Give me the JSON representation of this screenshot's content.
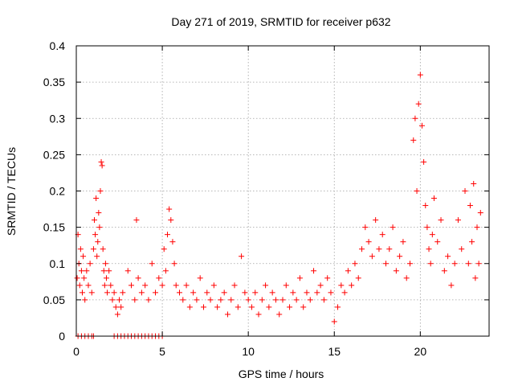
{
  "chart_data": {
    "type": "scatter",
    "title": "Day 271 of 2019, SRMTID for receiver p632",
    "xlabel": "GPS time / hours",
    "ylabel": "SRMTID / TECUs",
    "xlim": [
      0,
      24
    ],
    "ylim": [
      0,
      0.4
    ],
    "xticks": [
      0,
      5,
      10,
      15,
      20
    ],
    "xtick_labels": [
      "0",
      "5",
      "10",
      "15",
      "20"
    ],
    "yticks": [
      0,
      0.05,
      0.1,
      0.15,
      0.2,
      0.25,
      0.3,
      0.35,
      0.4
    ],
    "ytick_labels": [
      "0",
      "0.05",
      "0.1",
      "0.15",
      "0.2",
      "0.25",
      "0.3",
      "0.35",
      "0.4"
    ],
    "grid": true,
    "marker": "+",
    "series": [
      {
        "name": "SRMTID",
        "color": "#ff0000",
        "points": [
          [
            0.05,
            0.08
          ],
          [
            0.1,
            0.14
          ],
          [
            0.15,
            0.1
          ],
          [
            0.2,
            0.07
          ],
          [
            0.25,
            0.12
          ],
          [
            0.3,
            0.09
          ],
          [
            0.35,
            0.06
          ],
          [
            0.4,
            0.11
          ],
          [
            0.45,
            0.08
          ],
          [
            0.5,
            0.05
          ],
          [
            0.6,
            0.09
          ],
          [
            0.7,
            0.07
          ],
          [
            0.8,
            0.1
          ],
          [
            0.9,
            0.06
          ],
          [
            1.0,
            0.12
          ],
          [
            1.05,
            0.16
          ],
          [
            1.1,
            0.14
          ],
          [
            1.15,
            0.19
          ],
          [
            1.2,
            0.11
          ],
          [
            1.25,
            0.13
          ],
          [
            1.3,
            0.17
          ],
          [
            1.35,
            0.15
          ],
          [
            1.4,
            0.2
          ],
          [
            1.45,
            0.24
          ],
          [
            1.5,
            0.235
          ],
          [
            1.55,
            0.12
          ],
          [
            1.6,
            0.09
          ],
          [
            1.65,
            0.07
          ],
          [
            1.7,
            0.1
          ],
          [
            1.75,
            0.08
          ],
          [
            1.8,
            0.06
          ],
          [
            1.9,
            0.09
          ],
          [
            2.0,
            0.07
          ],
          [
            2.1,
            0.05
          ],
          [
            2.2,
            0.06
          ],
          [
            2.3,
            0.04
          ],
          [
            2.4,
            0.03
          ],
          [
            2.5,
            0.05
          ],
          [
            2.6,
            0.04
          ],
          [
            2.7,
            0.06
          ],
          [
            3.0,
            0.09
          ],
          [
            3.2,
            0.07
          ],
          [
            3.4,
            0.05
          ],
          [
            3.5,
            0.16
          ],
          [
            3.6,
            0.08
          ],
          [
            3.8,
            0.06
          ],
          [
            4.0,
            0.07
          ],
          [
            4.2,
            0.05
          ],
          [
            4.4,
            0.1
          ],
          [
            4.6,
            0.06
          ],
          [
            4.8,
            0.08
          ],
          [
            5.0,
            0.07
          ],
          [
            5.1,
            0.12
          ],
          [
            5.2,
            0.09
          ],
          [
            5.3,
            0.14
          ],
          [
            5.4,
            0.175
          ],
          [
            5.5,
            0.16
          ],
          [
            5.6,
            0.13
          ],
          [
            5.7,
            0.1
          ],
          [
            5.8,
            0.07
          ],
          [
            6.0,
            0.06
          ],
          [
            6.2,
            0.05
          ],
          [
            6.4,
            0.07
          ],
          [
            6.6,
            0.04
          ],
          [
            6.8,
            0.06
          ],
          [
            7.0,
            0.05
          ],
          [
            7.2,
            0.08
          ],
          [
            7.4,
            0.04
          ],
          [
            7.6,
            0.06
          ],
          [
            7.8,
            0.05
          ],
          [
            8.0,
            0.07
          ],
          [
            8.2,
            0.04
          ],
          [
            8.4,
            0.05
          ],
          [
            8.6,
            0.06
          ],
          [
            8.8,
            0.03
          ],
          [
            9.0,
            0.05
          ],
          [
            9.2,
            0.07
          ],
          [
            9.4,
            0.04
          ],
          [
            9.6,
            0.11
          ],
          [
            9.8,
            0.06
          ],
          [
            10.0,
            0.05
          ],
          [
            10.2,
            0.04
          ],
          [
            10.4,
            0.06
          ],
          [
            10.6,
            0.03
          ],
          [
            10.8,
            0.05
          ],
          [
            11.0,
            0.07
          ],
          [
            11.2,
            0.04
          ],
          [
            11.4,
            0.06
          ],
          [
            11.6,
            0.05
          ],
          [
            11.8,
            0.03
          ],
          [
            12.0,
            0.05
          ],
          [
            12.2,
            0.07
          ],
          [
            12.4,
            0.04
          ],
          [
            12.6,
            0.06
          ],
          [
            12.8,
            0.05
          ],
          [
            13.0,
            0.08
          ],
          [
            13.2,
            0.04
          ],
          [
            13.4,
            0.06
          ],
          [
            13.6,
            0.05
          ],
          [
            13.8,
            0.09
          ],
          [
            14.0,
            0.06
          ],
          [
            14.2,
            0.07
          ],
          [
            14.4,
            0.05
          ],
          [
            14.6,
            0.08
          ],
          [
            14.8,
            0.06
          ],
          [
            15.0,
            0.02
          ],
          [
            15.2,
            0.04
          ],
          [
            15.4,
            0.07
          ],
          [
            15.6,
            0.06
          ],
          [
            15.8,
            0.09
          ],
          [
            16.0,
            0.07
          ],
          [
            16.2,
            0.1
          ],
          [
            16.4,
            0.08
          ],
          [
            16.6,
            0.12
          ],
          [
            16.8,
            0.15
          ],
          [
            17.0,
            0.13
          ],
          [
            17.2,
            0.11
          ],
          [
            17.4,
            0.16
          ],
          [
            17.6,
            0.12
          ],
          [
            17.8,
            0.14
          ],
          [
            18.0,
            0.1
          ],
          [
            18.2,
            0.12
          ],
          [
            18.4,
            0.15
          ],
          [
            18.6,
            0.09
          ],
          [
            18.8,
            0.11
          ],
          [
            19.0,
            0.13
          ],
          [
            19.2,
            0.08
          ],
          [
            19.4,
            0.1
          ],
          [
            19.6,
            0.27
          ],
          [
            19.7,
            0.3
          ],
          [
            19.8,
            0.2
          ],
          [
            19.9,
            0.32
          ],
          [
            20.0,
            0.36
          ],
          [
            20.1,
            0.29
          ],
          [
            20.2,
            0.24
          ],
          [
            20.3,
            0.18
          ],
          [
            20.4,
            0.15
          ],
          [
            20.5,
            0.12
          ],
          [
            20.6,
            0.1
          ],
          [
            20.7,
            0.14
          ],
          [
            20.8,
            0.19
          ],
          [
            21.0,
            0.13
          ],
          [
            21.2,
            0.16
          ],
          [
            21.4,
            0.09
          ],
          [
            21.6,
            0.11
          ],
          [
            21.8,
            0.07
          ],
          [
            22.0,
            0.1
          ],
          [
            22.2,
            0.16
          ],
          [
            22.4,
            0.12
          ],
          [
            22.6,
            0.2
          ],
          [
            22.8,
            0.1
          ],
          [
            22.9,
            0.18
          ],
          [
            23.0,
            0.13
          ],
          [
            23.1,
            0.21
          ],
          [
            23.2,
            0.08
          ],
          [
            23.3,
            0.15
          ],
          [
            23.4,
            0.1
          ],
          [
            23.5,
            0.17
          ],
          [
            0.1,
            0.0
          ],
          [
            0.3,
            0.0
          ],
          [
            0.5,
            0.0
          ],
          [
            0.7,
            0.0
          ],
          [
            0.9,
            0.0
          ],
          [
            1.0,
            0.0
          ],
          [
            2.2,
            0.0
          ],
          [
            2.4,
            0.0
          ],
          [
            2.6,
            0.0
          ],
          [
            2.8,
            0.0
          ],
          [
            3.0,
            0.0
          ],
          [
            3.2,
            0.0
          ],
          [
            3.4,
            0.0
          ],
          [
            3.6,
            0.0
          ],
          [
            3.8,
            0.0
          ],
          [
            4.0,
            0.0
          ],
          [
            4.2,
            0.0
          ],
          [
            4.4,
            0.0
          ],
          [
            4.6,
            0.0
          ],
          [
            4.8,
            0.0
          ],
          [
            5.0,
            0.0
          ]
        ]
      }
    ]
  }
}
